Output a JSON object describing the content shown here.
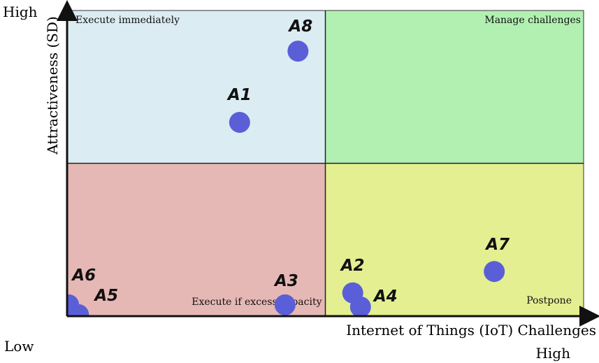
{
  "chart_data": {
    "type": "scatter",
    "x_label": "Internet of Things (IoT) Challenges",
    "y_label": "Attractiveness (SD)",
    "y_high": "High",
    "y_low": "Low",
    "x_high": "High",
    "point_labels": [
      "A8",
      "A1",
      "A6",
      "A5",
      "A3",
      "A2",
      "A4",
      "A7"
    ],
    "x": [
      44.7,
      33.4,
      0.3,
      2.2,
      42.2,
      55.3,
      56.8,
      82.7
    ],
    "values": [
      86.7,
      63.4,
      3.7,
      0.5,
      3.7,
      7.6,
      3.0,
      14.6
    ],
    "color": "#5a5fd8",
    "xlim": [
      0,
      100
    ],
    "ylim": [
      0,
      100
    ],
    "dividers": {
      "x": 50,
      "y": 50
    },
    "quadrants": [
      {
        "label": "Execute immediately",
        "color": "#dcecf3"
      },
      {
        "label": "Manage challenges",
        "color": "#b1f0b1"
      },
      {
        "label": "Execute if excess capacity",
        "color": "#e6b8b5"
      },
      {
        "label": "Postpone",
        "color": "#e3ef91"
      }
    ]
  }
}
